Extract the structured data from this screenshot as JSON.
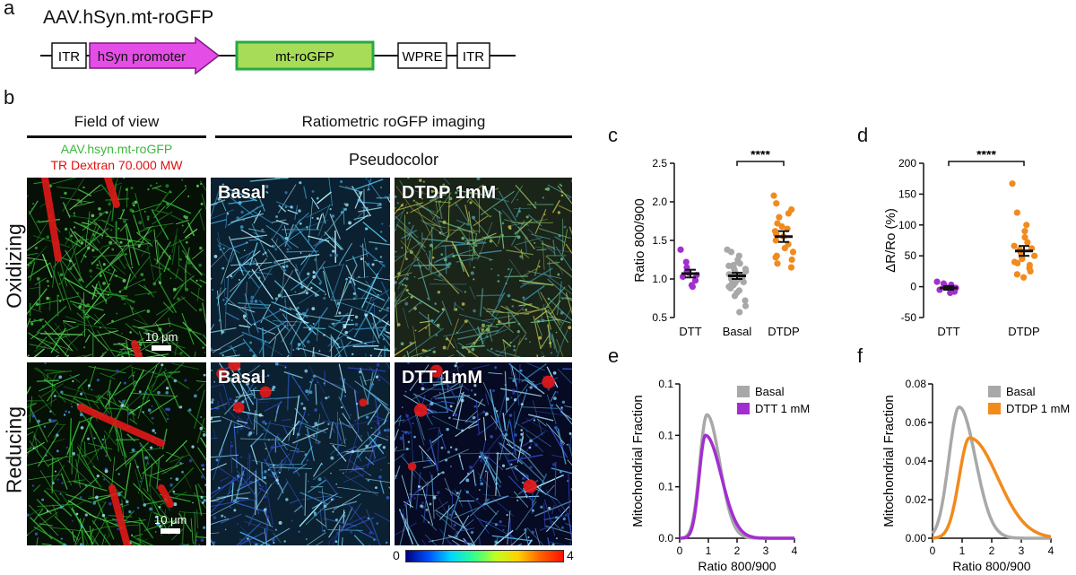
{
  "panel_a": {
    "letter": "a",
    "construct_title": "AAV.hSyn.mt-roGFP",
    "elements": [
      "ITR",
      "hSyn promoter",
      "mt-roGFP",
      "WPRE",
      "ITR"
    ],
    "colors": {
      "promoter_fill": "#e44ee6",
      "gfp_fill": "#a7dc58",
      "gfp_border": "#27a845"
    }
  },
  "panel_b": {
    "letter": "b",
    "fov_header": "Field of view",
    "ratio_header": "Ratiometric roGFP imaging",
    "legend_green": "AAV.hsyn.mt-roGFP",
    "legend_red": "TR Dextran 70.000 MW",
    "pseudocolor": "Pseudocolor",
    "row_labels": [
      "Oxidizing",
      "Reducing"
    ],
    "image_labels": {
      "ox_basal": "Basal",
      "ox_treat": "DTDP 1mM",
      "red_basal": "Basal",
      "red_treat": "DTT 1mM"
    },
    "scalebar": "10 μm",
    "colorbar": {
      "min": "0",
      "max": "4"
    }
  },
  "panel_c": {
    "letter": "c"
  },
  "panel_d": {
    "letter": "d"
  },
  "panel_e": {
    "letter": "e"
  },
  "panel_f": {
    "letter": "f"
  },
  "chart_data": [
    {
      "id": "c",
      "type": "scatter",
      "ylabel": "Ratio 800/900",
      "ylim": [
        0.5,
        2.5
      ],
      "yticks": [
        0.5,
        1.0,
        1.5,
        2.0,
        2.5
      ],
      "categories": [
        "DTT",
        "Basal",
        "DTDP"
      ],
      "colors": [
        "#a22ed0",
        "#a8a8a8",
        "#f28a1c"
      ],
      "means": [
        1.07,
        1.04,
        1.55
      ],
      "sem": [
        0.05,
        0.04,
        0.07
      ],
      "points": [
        [
          1.38,
          1.22,
          1.15,
          1.1,
          1.05,
          1.03,
          0.98,
          0.92,
          0.9,
          1.08
        ],
        [
          1.38,
          1.35,
          1.3,
          1.25,
          1.22,
          1.2,
          1.17,
          1.15,
          1.12,
          1.1,
          1.08,
          1.06,
          1.05,
          1.03,
          1.02,
          1.0,
          0.98,
          0.96,
          0.95,
          0.93,
          0.9,
          0.88,
          0.85,
          0.82,
          0.78,
          0.72,
          0.65,
          0.57,
          1.13,
          1.0,
          0.92,
          1.18
        ],
        [
          2.08,
          1.98,
          1.9,
          1.85,
          1.8,
          1.72,
          1.68,
          1.62,
          1.58,
          1.55,
          1.5,
          1.45,
          1.4,
          1.35,
          1.3,
          1.25,
          1.2,
          1.15,
          1.28,
          1.65
        ]
      ],
      "significance": {
        "label": "****",
        "between": [
          "Basal",
          "DTDP"
        ]
      }
    },
    {
      "id": "d",
      "type": "scatter",
      "ylabel": "ΔR/Ro (%)",
      "ylim": [
        -50,
        200
      ],
      "yticks": [
        -50,
        0,
        50,
        100,
        150,
        200
      ],
      "categories": [
        "DTT",
        "DTDP"
      ],
      "colors": [
        "#a22ed0",
        "#f28a1c"
      ],
      "means": [
        -2,
        58
      ],
      "sem": [
        3,
        8
      ],
      "points": [
        [
          8,
          5,
          2,
          0,
          -2,
          -5,
          -8,
          -10,
          3
        ],
        [
          167,
          120,
          100,
          90,
          80,
          72,
          66,
          60,
          55,
          50,
          45,
          40,
          35,
          30,
          25,
          20,
          15,
          62,
          48,
          38
        ]
      ],
      "significance": {
        "label": "****",
        "between": [
          "DTT",
          "DTDP"
        ]
      }
    },
    {
      "id": "e",
      "type": "line",
      "xlabel": "Ratio 800/900",
      "ylabel": "Mitochondrial Fraction",
      "xlim": [
        0,
        4
      ],
      "ylim": [
        0,
        0.15
      ],
      "xticks": [
        0,
        1,
        2,
        3,
        4
      ],
      "yticks": [
        0.0,
        0.05,
        0.1,
        0.15
      ],
      "legend": "top-right",
      "series": [
        {
          "name": "Basal",
          "color": "#a8a8a8",
          "peak_x": 0.95,
          "peak_y": 0.12,
          "left_width": 0.25,
          "right_width": 0.45
        },
        {
          "name": "DTT 1 mM",
          "color": "#a22ed0",
          "peak_x": 0.9,
          "peak_y": 0.1,
          "left_width": 0.22,
          "right_width": 0.55
        }
      ]
    },
    {
      "id": "f",
      "type": "line",
      "xlabel": "Ratio 800/900",
      "ylabel": "Mitochondrial Fraction",
      "xlim": [
        0,
        4
      ],
      "ylim": [
        0,
        0.08
      ],
      "xticks": [
        0,
        1,
        2,
        3,
        4
      ],
      "yticks": [
        0.0,
        0.02,
        0.04,
        0.06,
        0.08
      ],
      "legend": "top-right",
      "series": [
        {
          "name": "Basal",
          "color": "#a8a8a8",
          "peak_x": 0.9,
          "peak_y": 0.068,
          "left_width": 0.35,
          "right_width": 0.55
        },
        {
          "name": "DTDP 1 mM",
          "color": "#f28a1c",
          "peak_x": 1.25,
          "peak_y": 0.052,
          "left_width": 0.35,
          "right_width": 0.95
        }
      ]
    }
  ]
}
